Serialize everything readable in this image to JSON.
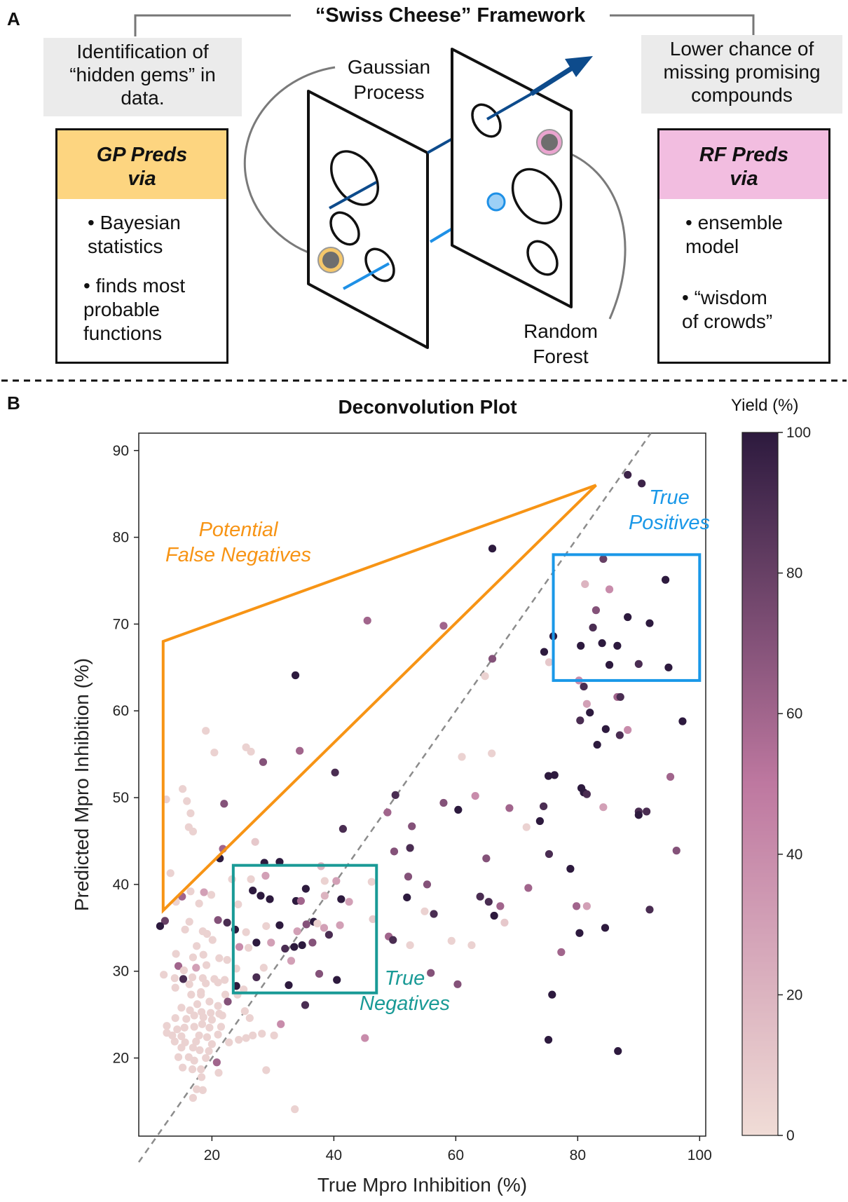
{
  "panel_a": {
    "letter": "A",
    "title": "“Swiss Cheese” Framework",
    "left_note": [
      "Identification of",
      "“hidden gems” in",
      "data."
    ],
    "right_note": [
      "Lower chance of",
      "missing promising",
      "compounds"
    ],
    "gp_box": {
      "heading": [
        "GP Preds",
        "via"
      ],
      "bullets": [
        [
          "• Bayesian",
          "statistics"
        ],
        [
          "• finds most",
          "probable",
          "functions"
        ]
      ],
      "color": "#fdd580"
    },
    "rf_box": {
      "heading": [
        "RF Preds",
        "via"
      ],
      "bullets": [
        [
          "• ensemble",
          "model"
        ],
        [
          "• “wisdom",
          "of crowds”"
        ]
      ],
      "color": "#f2bde0"
    },
    "gp_label": [
      "Gaussian",
      "Process"
    ],
    "rf_label": [
      "Random",
      "Forest"
    ],
    "colors": {
      "gp_marker": "#f5c76a",
      "rf_marker": "#eaa4cf",
      "dark_blue": "#0d4b8c",
      "light_blue": "#1e90e6"
    }
  },
  "panel_b": {
    "letter": "B",
    "colorbar_title": "Yield (%)",
    "colorbar_ticks": [
      "0",
      "20",
      "40",
      "60",
      "80",
      "100"
    ],
    "annotations": {
      "false_neg": [
        "Potential",
        "False Negatives"
      ],
      "true_pos": [
        "True",
        "Positives"
      ],
      "true_neg": [
        "True",
        "Negatives"
      ]
    },
    "annotation_colors": {
      "false_neg": "#f79415",
      "true_pos": "#1a98e8",
      "true_neg": "#199a96"
    },
    "x_tick_labels": [
      "20",
      "40",
      "60",
      "80",
      "100"
    ],
    "y_tick_labels": [
      "20",
      "30",
      "40",
      "50",
      "60",
      "70",
      "80",
      "90"
    ]
  },
  "chart_data": {
    "type": "scatter",
    "title": "Deconvolution Plot",
    "xlabel": "True Mpro Inhibition (%)",
    "ylabel": "Predicted Mpro Inhibition (%)",
    "xlim": [
      8,
      101
    ],
    "ylim": [
      11,
      92
    ],
    "x_ticks": [
      20,
      40,
      60,
      80,
      100
    ],
    "y_ticks": [
      20,
      30,
      40,
      50,
      60,
      70,
      80,
      90
    ],
    "diagonal": "dashed y = x",
    "color_scale": {
      "label": "Yield (%)",
      "min": 0,
      "max": 100,
      "low_color": "#f0dcd6",
      "high_color": "#2d1a3e"
    },
    "regions": [
      {
        "name": "Potential False Negatives",
        "shape": "polygon",
        "points": [
          [
            12,
            68
          ],
          [
            83,
            86
          ],
          [
            12,
            37
          ]
        ]
      },
      {
        "name": "True Positives",
        "shape": "rect",
        "x": [
          76,
          100
        ],
        "y": [
          63.5,
          78
        ]
      },
      {
        "name": "True Negatives",
        "shape": "rect",
        "x": [
          23.5,
          47
        ],
        "y": [
          27.5,
          42.2
        ]
      }
    ],
    "points": [
      [
        88.2,
        87.2,
        95
      ],
      [
        90.5,
        86.2,
        95
      ],
      [
        66.0,
        78.7,
        100
      ],
      [
        84.2,
        77.5,
        80
      ],
      [
        81.2,
        74.6,
        20
      ],
      [
        85.2,
        74.0,
        40
      ],
      [
        94.4,
        75.1,
        100
      ],
      [
        45.5,
        70.4,
        60
      ],
      [
        58.0,
        69.8,
        60
      ],
      [
        83.0,
        71.6,
        70
      ],
      [
        82.5,
        69.6,
        90
      ],
      [
        88.2,
        70.8,
        100
      ],
      [
        91.8,
        70.1,
        100
      ],
      [
        76.0,
        68.6,
        100
      ],
      [
        80.5,
        67.5,
        100
      ],
      [
        84.0,
        67.8,
        100
      ],
      [
        86.5,
        67.5,
        100
      ],
      [
        74.5,
        66.8,
        100
      ],
      [
        66.0,
        66.0,
        70
      ],
      [
        85.2,
        65.3,
        100
      ],
      [
        90.0,
        65.4,
        90
      ],
      [
        94.9,
        65.0,
        100
      ],
      [
        75.3,
        65.6,
        10
      ],
      [
        80.2,
        63.5,
        40
      ],
      [
        64.8,
        64.0,
        5
      ],
      [
        33.7,
        64.1,
        100
      ],
      [
        81.0,
        62.8,
        90
      ],
      [
        86.5,
        61.6,
        60
      ],
      [
        87.0,
        61.6,
        90
      ],
      [
        81.5,
        60.8,
        30
      ],
      [
        82.0,
        59.8,
        100
      ],
      [
        80.4,
        58.9,
        90
      ],
      [
        84.6,
        57.9,
        100
      ],
      [
        86.9,
        57.2,
        90
      ],
      [
        88.2,
        57.8,
        40
      ],
      [
        97.2,
        58.8,
        100
      ],
      [
        83.2,
        56.1,
        100
      ],
      [
        19.0,
        57.7,
        5
      ],
      [
        25.6,
        55.8,
        5
      ],
      [
        20.4,
        55.2,
        5
      ],
      [
        26.4,
        55.3,
        5
      ],
      [
        34.4,
        55.4,
        60
      ],
      [
        61.0,
        54.7,
        5
      ],
      [
        65.9,
        55.1,
        5
      ],
      [
        28.4,
        54.1,
        70
      ],
      [
        40.2,
        52.9,
        90
      ],
      [
        75.2,
        52.5,
        100
      ],
      [
        76.2,
        52.6,
        100
      ],
      [
        95.2,
        52.4,
        60
      ],
      [
        80.6,
        51.1,
        100
      ],
      [
        81.0,
        50.6,
        100
      ],
      [
        81.5,
        50.4,
        90
      ],
      [
        50.1,
        50.3,
        90
      ],
      [
        63.2,
        50.2,
        40
      ],
      [
        58.0,
        49.4,
        70
      ],
      [
        74.4,
        49.0,
        90
      ],
      [
        15.2,
        51.0,
        5
      ],
      [
        15.9,
        49.6,
        5
      ],
      [
        16.5,
        48.2,
        5
      ],
      [
        12.5,
        49.8,
        5
      ],
      [
        22.0,
        49.3,
        70
      ],
      [
        48.8,
        48.3,
        60
      ],
      [
        60.4,
        48.6,
        100
      ],
      [
        68.8,
        48.8,
        60
      ],
      [
        84.2,
        48.9,
        30
      ],
      [
        90.0,
        48.4,
        90
      ],
      [
        91.3,
        48.4,
        90
      ],
      [
        90.0,
        48.0,
        100
      ],
      [
        73.8,
        47.3,
        100
      ],
      [
        16.2,
        46.6,
        5
      ],
      [
        16.9,
        46.1,
        5
      ],
      [
        41.5,
        46.4,
        90
      ],
      [
        52.8,
        46.7,
        70
      ],
      [
        71.6,
        46.6,
        5
      ],
      [
        27.1,
        44.9,
        10
      ],
      [
        21.8,
        44.1,
        60
      ],
      [
        52.5,
        44.2,
        90
      ],
      [
        49.9,
        43.8,
        70
      ],
      [
        65.0,
        43.0,
        70
      ],
      [
        75.3,
        43.5,
        90
      ],
      [
        96.2,
        43.9,
        70
      ],
      [
        21.3,
        43.0,
        100
      ],
      [
        28.6,
        42.5,
        100
      ],
      [
        31.1,
        42.6,
        100
      ],
      [
        37.9,
        42.1,
        20
      ],
      [
        13.2,
        41.3,
        5
      ],
      [
        28.8,
        41.0,
        30
      ],
      [
        78.8,
        41.8,
        100
      ],
      [
        23.3,
        40.6,
        5
      ],
      [
        26.4,
        40.6,
        5
      ],
      [
        38.5,
        40.4,
        5
      ],
      [
        46.2,
        40.3,
        5
      ],
      [
        40.4,
        40.4,
        30
      ],
      [
        52.2,
        40.9,
        70
      ],
      [
        55.3,
        40.0,
        70
      ],
      [
        16.5,
        39.2,
        5
      ],
      [
        18.7,
        39.1,
        30
      ],
      [
        19.9,
        38.8,
        5
      ],
      [
        26.7,
        39.3,
        100
      ],
      [
        28.0,
        38.7,
        100
      ],
      [
        29.5,
        38.3,
        100
      ],
      [
        33.8,
        38.1,
        100
      ],
      [
        35.4,
        39.5,
        100
      ],
      [
        38.5,
        38.7,
        20
      ],
      [
        42.5,
        38.0,
        30
      ],
      [
        15.1,
        38.6,
        60
      ],
      [
        14.1,
        38.0,
        5
      ],
      [
        17.9,
        37.8,
        5
      ],
      [
        24.3,
        37.7,
        5
      ],
      [
        34.6,
        38.1,
        60
      ],
      [
        41.2,
        38.3,
        100
      ],
      [
        52.0,
        38.5,
        100
      ],
      [
        64.0,
        38.6,
        90
      ],
      [
        65.4,
        38.0,
        90
      ],
      [
        67.3,
        37.5,
        60
      ],
      [
        71.9,
        39.6,
        60
      ],
      [
        79.8,
        37.5,
        60
      ],
      [
        81.5,
        37.5,
        30
      ],
      [
        91.8,
        37.1,
        90
      ],
      [
        54.9,
        36.9,
        5
      ],
      [
        56.4,
        36.6,
        90
      ],
      [
        66.3,
        36.4,
        100
      ],
      [
        68.0,
        35.6,
        10
      ],
      [
        21.0,
        35.9,
        70
      ],
      [
        22.5,
        35.6,
        90
      ],
      [
        12.3,
        35.8,
        80
      ],
      [
        11.5,
        35.2,
        100
      ],
      [
        28.9,
        35.2,
        5
      ],
      [
        31.1,
        35.3,
        100
      ],
      [
        35.5,
        35.4,
        70
      ],
      [
        36.7,
        35.7,
        100
      ],
      [
        37.3,
        35.5,
        5
      ],
      [
        38.4,
        35.0,
        30
      ],
      [
        41.0,
        35.3,
        30
      ],
      [
        46.4,
        36.0,
        10
      ],
      [
        16.3,
        35.7,
        5
      ],
      [
        15.6,
        34.8,
        5
      ],
      [
        18.5,
        34.6,
        5
      ],
      [
        19.2,
        34.3,
        5
      ],
      [
        23.8,
        34.8,
        100
      ],
      [
        25.6,
        34.5,
        5
      ],
      [
        34.0,
        34.6,
        30
      ],
      [
        39.2,
        34.2,
        90
      ],
      [
        49.0,
        34.0,
        60
      ],
      [
        49.7,
        33.6,
        90
      ],
      [
        52.5,
        33.0,
        5
      ],
      [
        59.3,
        33.5,
        5
      ],
      [
        62.6,
        33.0,
        5
      ],
      [
        20.1,
        33.6,
        5
      ],
      [
        17.5,
        32.9,
        5
      ],
      [
        24.5,
        32.8,
        40
      ],
      [
        26.0,
        32.7,
        5
      ],
      [
        27.3,
        33.3,
        100
      ],
      [
        29.7,
        33.3,
        30
      ],
      [
        32.0,
        32.6,
        90
      ],
      [
        33.5,
        32.8,
        100
      ],
      [
        34.8,
        33.0,
        100
      ],
      [
        36.5,
        33.3,
        70
      ],
      [
        77.3,
        32.2,
        60
      ],
      [
        80.3,
        34.4,
        100
      ],
      [
        84.5,
        35.0,
        100
      ],
      [
        14.1,
        32.0,
        5
      ],
      [
        16.9,
        31.6,
        5
      ],
      [
        18.6,
        31.9,
        5
      ],
      [
        21.2,
        31.5,
        5
      ],
      [
        22.5,
        31.3,
        5
      ],
      [
        14.5,
        30.6,
        60
      ],
      [
        15.4,
        30.1,
        5
      ],
      [
        17.4,
        30.4,
        30
      ],
      [
        19.1,
        30.7,
        5
      ],
      [
        24.0,
        30.3,
        5
      ],
      [
        28.5,
        30.4,
        5
      ],
      [
        33.0,
        31.2,
        30
      ],
      [
        55.9,
        29.8,
        70
      ],
      [
        12.1,
        29.6,
        5
      ],
      [
        13.9,
        29.2,
        5
      ],
      [
        15.3,
        29.1,
        90
      ],
      [
        16.8,
        29.3,
        5
      ],
      [
        18.5,
        29.2,
        5
      ],
      [
        20.4,
        29.1,
        5
      ],
      [
        22.1,
        29.0,
        5
      ],
      [
        27.3,
        29.3,
        90
      ],
      [
        32.6,
        28.4,
        100
      ],
      [
        37.6,
        29.7,
        70
      ],
      [
        40.5,
        29.0,
        100
      ],
      [
        60.3,
        28.5,
        70
      ],
      [
        14.0,
        28.1,
        5
      ],
      [
        16.3,
        28.5,
        5
      ],
      [
        18.2,
        27.6,
        5
      ],
      [
        19.0,
        28.6,
        5
      ],
      [
        21.0,
        28.7,
        5
      ],
      [
        24.0,
        28.3,
        100
      ],
      [
        25.2,
        27.9,
        5
      ],
      [
        16.6,
        27.3,
        5
      ],
      [
        18.2,
        27.3,
        5
      ],
      [
        22.2,
        27.3,
        5
      ],
      [
        24.2,
        27.3,
        5
      ],
      [
        75.8,
        27.3,
        100
      ],
      [
        17.6,
        26.2,
        5
      ],
      [
        19.6,
        26.5,
        5
      ],
      [
        21.0,
        26.0,
        5
      ],
      [
        22.6,
        26.5,
        70
      ],
      [
        35.3,
        26.1,
        90
      ],
      [
        15.0,
        25.8,
        5
      ],
      [
        16.4,
        25.5,
        5
      ],
      [
        18.3,
        25.3,
        5
      ],
      [
        19.8,
        25.2,
        5
      ],
      [
        21.2,
        25.1,
        5
      ],
      [
        25.4,
        25.4,
        5
      ],
      [
        14.0,
        24.6,
        5
      ],
      [
        15.8,
        24.5,
        5
      ],
      [
        17.1,
        24.9,
        5
      ],
      [
        18.6,
        24.7,
        5
      ],
      [
        20.0,
        24.4,
        5
      ],
      [
        21.7,
        24.9,
        5
      ],
      [
        26.2,
        24.6,
        5
      ],
      [
        12.6,
        23.7,
        5
      ],
      [
        14.3,
        23.3,
        5
      ],
      [
        15.5,
        23.5,
        5
      ],
      [
        17.1,
        23.6,
        5
      ],
      [
        18.4,
        23.9,
        5
      ],
      [
        19.6,
        23.5,
        5
      ],
      [
        21.5,
        23.6,
        5
      ],
      [
        31.3,
        23.9,
        40
      ],
      [
        12.6,
        22.9,
        5
      ],
      [
        13.5,
        22.6,
        5
      ],
      [
        15.0,
        22.5,
        5
      ],
      [
        17.9,
        22.6,
        5
      ],
      [
        19.2,
        22.4,
        5
      ],
      [
        21.0,
        22.7,
        5
      ],
      [
        26.7,
        22.6,
        5
      ],
      [
        28.2,
        22.8,
        5
      ],
      [
        30.2,
        22.6,
        5
      ],
      [
        45.1,
        22.3,
        40
      ],
      [
        75.2,
        22.1,
        100
      ],
      [
        13.9,
        21.9,
        5
      ],
      [
        15.6,
        21.8,
        5
      ],
      [
        17.4,
        21.9,
        5
      ],
      [
        20.0,
        21.6,
        5
      ],
      [
        22.8,
        21.8,
        5
      ],
      [
        24.4,
        22.1,
        5
      ],
      [
        25.6,
        22.3,
        5
      ],
      [
        15.0,
        21.2,
        5
      ],
      [
        16.9,
        21.2,
        5
      ],
      [
        18.0,
        20.9,
        5
      ],
      [
        19.5,
        20.8,
        5
      ],
      [
        14.5,
        20.1,
        5
      ],
      [
        16.2,
        20.1,
        5
      ],
      [
        19.0,
        20.0,
        5
      ],
      [
        17.1,
        19.7,
        5
      ],
      [
        20.8,
        19.5,
        60
      ],
      [
        15.2,
        18.9,
        5
      ],
      [
        16.8,
        18.7,
        5
      ],
      [
        18.2,
        18.7,
        5
      ],
      [
        21.1,
        18.3,
        5
      ],
      [
        28.9,
        18.6,
        5
      ],
      [
        86.6,
        20.8,
        100
      ],
      [
        18.3,
        17.8,
        5
      ],
      [
        17.5,
        16.4,
        5
      ],
      [
        18.5,
        16.3,
        5
      ],
      [
        16.9,
        15.4,
        5
      ],
      [
        33.6,
        14.1,
        5
      ]
    ]
  }
}
